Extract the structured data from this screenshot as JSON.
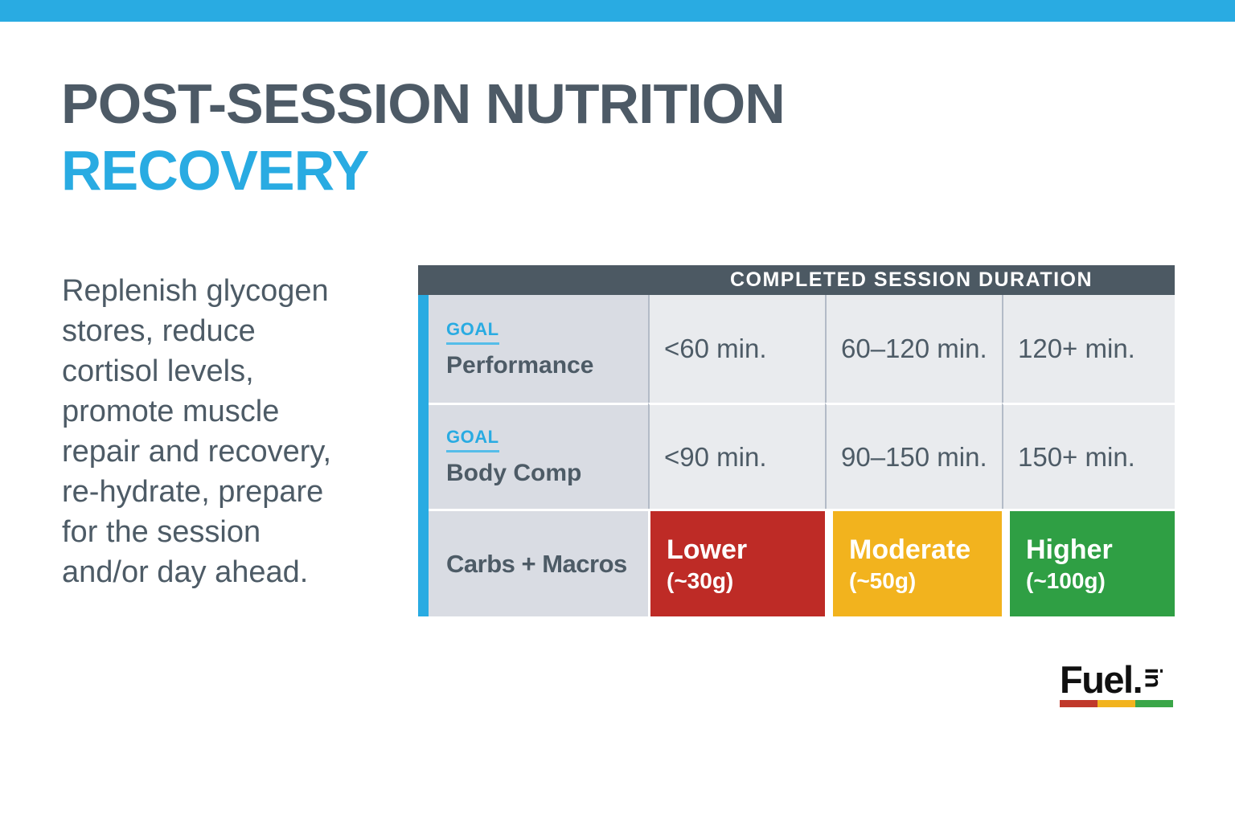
{
  "slide": {
    "title": {
      "line1": "POST-SESSION NUTRITION",
      "line2": "RECOVERY"
    },
    "intro_lines": [
      "Replenish glycogen",
      "stores, reduce",
      "cortisol levels,",
      "promote muscle",
      "repair and recovery,",
      "re-hydrate, prepare",
      "for the session",
      "and/or day ahead."
    ]
  },
  "table": {
    "header": "COMPLETED SESSION DURATION",
    "goal_rows": [
      {
        "tag": "GOAL",
        "name": "Performance",
        "durations": [
          "<60 min.",
          "60–120 min.",
          "120+ min."
        ]
      },
      {
        "tag": "GOAL",
        "name": "Body Comp",
        "durations": [
          "<90 min.",
          "90–150 min.",
          "150+ min."
        ]
      }
    ],
    "carbs_row": {
      "name": "Carbs + Macros",
      "levels": [
        {
          "label": "Lower",
          "amount": "(~30g)",
          "color": "#be2b26"
        },
        {
          "label": "Moderate",
          "amount": "(~50g)",
          "color": "#f2b31e"
        },
        {
          "label": "Higher",
          "amount": "(~100g)",
          "color": "#2f9f44"
        }
      ]
    }
  },
  "logo": {
    "wordmark": "Fuel.",
    "rotated_suffix": "in",
    "bar_colors": [
      "#c0392b",
      "#f2b31e",
      "#3aa648"
    ]
  },
  "palette": {
    "accent_blue": "#29abe2",
    "heading_slate": "#4d5a66",
    "table_header_bg": "#4c5963",
    "goal_column_bg": "#d9dce3",
    "data_cell_bg": "#e9ebee",
    "cell_divider": "#b3bbc7",
    "level_red": "#be2b26",
    "level_yellow": "#f2b31e",
    "level_green": "#2f9f44"
  }
}
